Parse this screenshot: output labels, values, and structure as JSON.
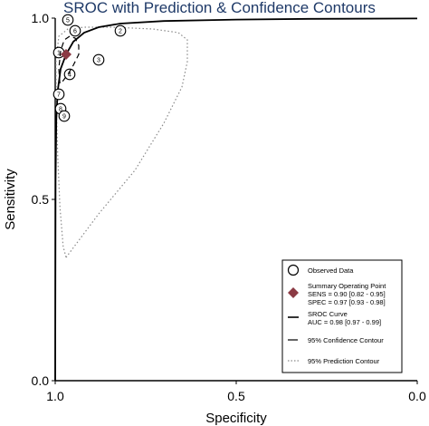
{
  "chart_data": {
    "type": "scatter",
    "title": "SROC with Prediction & Confidence Contours",
    "xlabel": "Specificity",
    "ylabel": "Sensitivity",
    "x_axis_reversed": true,
    "xlim": [
      1.0,
      0.0
    ],
    "ylim": [
      0.0,
      1.0
    ],
    "x_ticks": [
      {
        "value": 1.0,
        "label": "1.0"
      },
      {
        "value": 0.5,
        "label": "0.5"
      },
      {
        "value": 0.0,
        "label": "0.0"
      }
    ],
    "y_ticks": [
      {
        "value": 0.0,
        "label": "0.0"
      },
      {
        "value": 0.5,
        "label": "0.5"
      },
      {
        "value": 1.0,
        "label": "1.0"
      }
    ],
    "grid": false,
    "observed_data": [
      {
        "label": "1",
        "specificity": 0.99,
        "sensitivity": 0.905
      },
      {
        "label": "2",
        "specificity": 0.82,
        "sensitivity": 0.965
      },
      {
        "label": "3",
        "specificity": 0.88,
        "sensitivity": 0.885
      },
      {
        "label": "4",
        "specificity": 0.96,
        "sensitivity": 0.845
      },
      {
        "label": "5",
        "specificity": 0.965,
        "sensitivity": 0.995
      },
      {
        "label": "6",
        "specificity": 0.945,
        "sensitivity": 0.965
      },
      {
        "label": "7",
        "specificity": 0.99,
        "sensitivity": 0.79
      },
      {
        "label": "8",
        "specificity": 0.985,
        "sensitivity": 0.75
      },
      {
        "label": "9",
        "specificity": 0.975,
        "sensitivity": 0.73
      }
    ],
    "summary_point": {
      "specificity": 0.97,
      "sensitivity": 0.9,
      "color": "#8b3a44"
    },
    "sroc_curve": [
      [
        1.0,
        0.0
      ],
      [
        0.999,
        0.55
      ],
      [
        0.997,
        0.72
      ],
      [
        0.993,
        0.8
      ],
      [
        0.985,
        0.86
      ],
      [
        0.97,
        0.9
      ],
      [
        0.95,
        0.935
      ],
      [
        0.92,
        0.96
      ],
      [
        0.88,
        0.975
      ],
      [
        0.82,
        0.985
      ],
      [
        0.7,
        0.992
      ],
      [
        0.5,
        0.996
      ],
      [
        0.3,
        0.998
      ],
      [
        0.0,
        0.999
      ]
    ],
    "confidence_contour": [
      [
        0.987,
        0.82
      ],
      [
        0.99,
        0.86
      ],
      [
        0.985,
        0.91
      ],
      [
        0.975,
        0.94
      ],
      [
        0.96,
        0.95
      ],
      [
        0.945,
        0.945
      ],
      [
        0.935,
        0.925
      ],
      [
        0.935,
        0.9
      ],
      [
        0.95,
        0.87
      ],
      [
        0.965,
        0.845
      ],
      [
        0.98,
        0.825
      ],
      [
        0.987,
        0.82
      ]
    ],
    "prediction_contour": [
      [
        0.97,
        0.34
      ],
      [
        0.955,
        0.36
      ],
      [
        0.88,
        0.46
      ],
      [
        0.78,
        0.58
      ],
      [
        0.7,
        0.71
      ],
      [
        0.65,
        0.81
      ],
      [
        0.635,
        0.88
      ],
      [
        0.635,
        0.94
      ],
      [
        0.66,
        0.96
      ],
      [
        0.73,
        0.97
      ],
      [
        0.84,
        0.975
      ],
      [
        0.92,
        0.975
      ],
      [
        0.965,
        0.97
      ],
      [
        0.99,
        0.95
      ],
      [
        0.998,
        0.88
      ],
      [
        0.997,
        0.76
      ],
      [
        0.993,
        0.62
      ],
      [
        0.987,
        0.48
      ],
      [
        0.978,
        0.37
      ],
      [
        0.97,
        0.34
      ]
    ],
    "colors": {
      "title": "#1f3a68",
      "axis": "#000000",
      "summary": "#8b3a44",
      "prediction": "#8a8a8a"
    },
    "legend": {
      "position": "bottom-right",
      "observed_label": "Observed Data",
      "summary_label": "Summary Operating Point",
      "sens_text": "SENS = 0.90 [0.82 - 0.95]",
      "spec_text": "SPEC = 0.97 [0.93 - 0.98]",
      "curve_label": "SROC Curve",
      "auc_text": "AUC = 0.98 [0.97 - 0.99]",
      "confidence_label": "95% Confidence Contour",
      "prediction_label": "95% Prediction Contour"
    }
  }
}
